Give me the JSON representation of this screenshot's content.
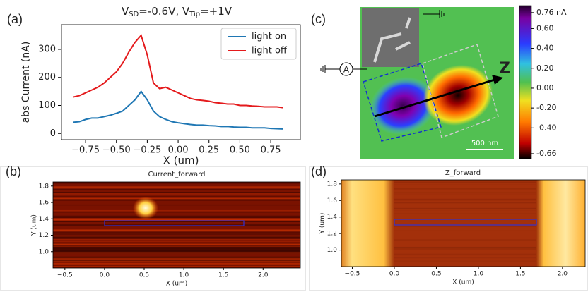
{
  "chart_data": [
    {
      "type": "line",
      "panel": "(a)",
      "title": [
        "V",
        "SD",
        "=-0.6V, V",
        "Tip",
        "=+1V"
      ],
      "xlabel": "X (um)",
      "ylabel": "abs Current (nA)",
      "x": [
        -0.85,
        -0.8,
        -0.75,
        -0.7,
        -0.65,
        -0.6,
        -0.55,
        -0.5,
        -0.45,
        -0.4,
        -0.35,
        -0.3,
        -0.25,
        -0.2,
        -0.15,
        -0.1,
        -0.05,
        0,
        0.05,
        0.1,
        0.15,
        0.2,
        0.25,
        0.3,
        0.35,
        0.4,
        0.45,
        0.5,
        0.55,
        0.6,
        0.65,
        0.7,
        0.75,
        0.8,
        0.85
      ],
      "series": [
        {
          "name": "light on",
          "color": "#1f77b4",
          "values": [
            40,
            42,
            50,
            55,
            55,
            60,
            65,
            72,
            80,
            100,
            120,
            150,
            120,
            80,
            60,
            50,
            42,
            38,
            35,
            32,
            30,
            30,
            28,
            27,
            25,
            25,
            23,
            22,
            22,
            20,
            20,
            20,
            18,
            17,
            16
          ]
        },
        {
          "name": "light off",
          "color": "#e41a1c",
          "values": [
            130,
            135,
            145,
            155,
            165,
            180,
            200,
            220,
            250,
            290,
            325,
            350,
            280,
            180,
            160,
            165,
            155,
            145,
            135,
            125,
            120,
            118,
            115,
            110,
            108,
            105,
            105,
            100,
            100,
            98,
            97,
            95,
            95,
            95,
            92
          ]
        }
      ],
      "xlim": [
        -0.945,
        0.99
      ],
      "ylim": [
        -22,
        388
      ],
      "xticks": [
        {
          "value": -0.75,
          "label": "−0.75"
        },
        {
          "value": -0.5,
          "label": "−0.50"
        },
        {
          "value": -0.25,
          "label": "−0.25"
        },
        {
          "value": 0,
          "label": "0.00"
        },
        0.25,
        {
          "value": 0.5,
          "label": "0.50"
        },
        0.75
      ],
      "yticks": [
        0,
        100,
        200,
        300
      ],
      "legend": "upper right"
    },
    {
      "type": "heatmap",
      "panel": "(b)",
      "title": "Current_forward",
      "xlabel": "X (um)",
      "ylabel": "Y (um)",
      "xlim": [
        -0.65,
        2.47
      ],
      "ylim": [
        0.8,
        1.85
      ],
      "xticks": [
        {
          "value": -0.5,
          "label": "−0.5"
        },
        {
          "value": 0,
          "label": "0.0"
        },
        0.5,
        {
          "value": 1,
          "label": "1.0"
        },
        1.5,
        {
          "value": 2,
          "label": "2.0"
        }
      ],
      "yticks": [
        {
          "value": 1,
          "label": "1.0"
        },
        1.2,
        1.4,
        1.6,
        1.8
      ]
    },
    {
      "type": "image",
      "panel": "(c)",
      "annotations": [
        "Z",
        "A",
        "500 nm"
      ],
      "clim": [
        -0.71,
        0.83
      ],
      "cticks": [
        {
          "value": 0.76,
          "label": "0.76 nA"
        },
        {
          "value": 0.6,
          "label": "0.60"
        },
        {
          "value": 0.4,
          "label": "0.40"
        },
        {
          "value": 0.2,
          "label": "0.20"
        },
        {
          "value": 0,
          "label": "0.00"
        },
        {
          "value": -0.2,
          "label": "-0.20"
        },
        {
          "value": -0.4,
          "label": "-0.40"
        },
        -0.66
      ]
    },
    {
      "type": "heatmap",
      "panel": "(d)",
      "title": "Z_forward",
      "xlabel": "X (um)",
      "ylabel": "Y (um)",
      "xlim": [
        -0.63,
        2.27
      ],
      "ylim": [
        0.8,
        1.85
      ],
      "xticks": [
        {
          "value": -0.5,
          "label": "−0.5"
        },
        {
          "value": 0,
          "label": "0.0"
        },
        0.5,
        {
          "value": 1,
          "label": "1.0"
        },
        1.5,
        {
          "value": 2,
          "label": "2.0"
        }
      ],
      "yticks": [
        {
          "value": 1,
          "label": "1.0"
        },
        1.2,
        1.4,
        1.6,
        1.8
      ]
    }
  ]
}
